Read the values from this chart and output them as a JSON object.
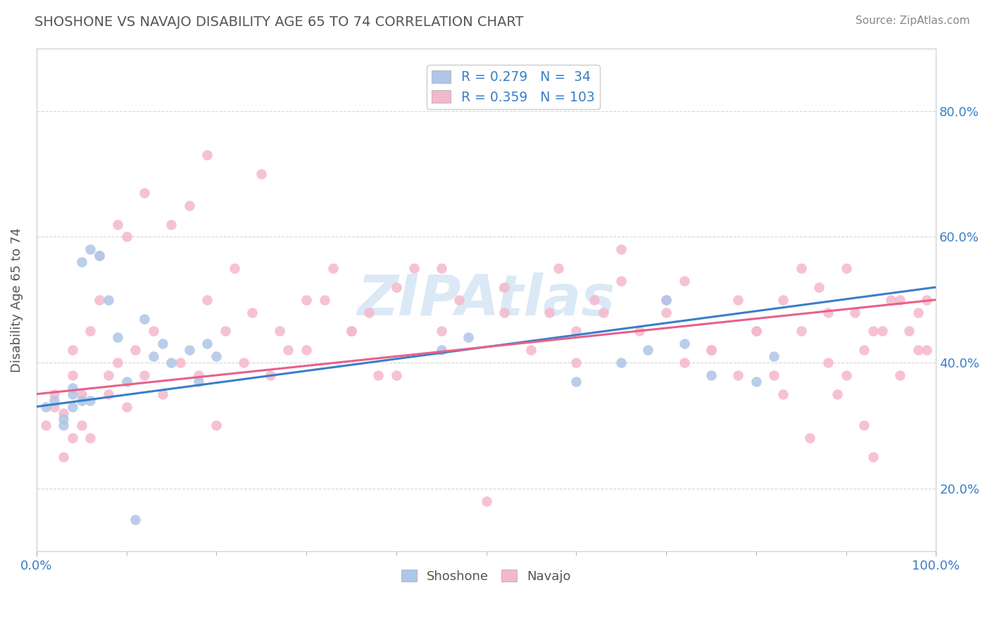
{
  "title": "SHOSHONE VS NAVAJO DISABILITY AGE 65 TO 74 CORRELATION CHART",
  "source_text": "Source: ZipAtlas.com",
  "ylabel": "Disability Age 65 to 74",
  "xlim": [
    0.0,
    1.0
  ],
  "ylim": [
    0.1,
    0.9
  ],
  "ytick_positions": [
    0.2,
    0.4,
    0.6,
    0.8
  ],
  "ytick_labels": [
    "20.0%",
    "40.0%",
    "60.0%",
    "80.0%"
  ],
  "xtick_major_positions": [
    0.0,
    1.0
  ],
  "xtick_major_labels": [
    "0.0%",
    "100.0%"
  ],
  "xtick_minor_positions": [
    0.0,
    0.1,
    0.2,
    0.3,
    0.4,
    0.5,
    0.6,
    0.7,
    0.8,
    0.9,
    1.0
  ],
  "shoshone_color": "#aec6e8",
  "navajo_color": "#f5b8cb",
  "shoshone_line_color": "#3a7ec6",
  "navajo_line_color": "#e8608a",
  "shoshone_R": 0.279,
  "shoshone_N": 34,
  "navajo_R": 0.359,
  "navajo_N": 103,
  "legend_label_shoshone": "Shoshone",
  "legend_label_navajo": "Navajo",
  "watermark": "ZIPAtlas",
  "background_color": "#ffffff",
  "grid_color": "#cccccc",
  "title_color": "#555555",
  "axis_label_color": "#3a7ec6",
  "ylabel_color": "#555555",
  "source_color": "#888888",
  "shoshone_points_x": [
    0.01,
    0.02,
    0.03,
    0.03,
    0.04,
    0.04,
    0.04,
    0.05,
    0.05,
    0.06,
    0.06,
    0.07,
    0.08,
    0.09,
    0.1,
    0.11,
    0.12,
    0.13,
    0.14,
    0.15,
    0.17,
    0.18,
    0.19,
    0.2,
    0.45,
    0.48,
    0.6,
    0.65,
    0.68,
    0.7,
    0.72,
    0.75,
    0.8,
    0.82
  ],
  "shoshone_points_y": [
    0.33,
    0.34,
    0.3,
    0.31,
    0.33,
    0.35,
    0.36,
    0.34,
    0.56,
    0.34,
    0.58,
    0.57,
    0.5,
    0.44,
    0.37,
    0.15,
    0.47,
    0.41,
    0.43,
    0.4,
    0.42,
    0.37,
    0.43,
    0.41,
    0.42,
    0.44,
    0.37,
    0.4,
    0.42,
    0.5,
    0.43,
    0.38,
    0.37,
    0.41
  ],
  "navajo_points_x": [
    0.01,
    0.02,
    0.02,
    0.03,
    0.03,
    0.04,
    0.04,
    0.04,
    0.05,
    0.05,
    0.06,
    0.06,
    0.07,
    0.07,
    0.08,
    0.08,
    0.09,
    0.09,
    0.1,
    0.1,
    0.11,
    0.12,
    0.12,
    0.13,
    0.14,
    0.15,
    0.16,
    0.17,
    0.18,
    0.19,
    0.19,
    0.2,
    0.21,
    0.22,
    0.23,
    0.24,
    0.25,
    0.26,
    0.27,
    0.28,
    0.3,
    0.32,
    0.33,
    0.35,
    0.37,
    0.38,
    0.4,
    0.42,
    0.45,
    0.47,
    0.5,
    0.52,
    0.55,
    0.57,
    0.6,
    0.62,
    0.65,
    0.67,
    0.7,
    0.72,
    0.75,
    0.78,
    0.8,
    0.82,
    0.83,
    0.85,
    0.87,
    0.88,
    0.9,
    0.91,
    0.92,
    0.93,
    0.95,
    0.96,
    0.97,
    0.98,
    0.99,
    0.99,
    0.6,
    0.63,
    0.7,
    0.75,
    0.8,
    0.85,
    0.88,
    0.9,
    0.92,
    0.94,
    0.96,
    0.98,
    0.3,
    0.35,
    0.4,
    0.45,
    0.52,
    0.58,
    0.65,
    0.72,
    0.78,
    0.83,
    0.86,
    0.89,
    0.93
  ],
  "navajo_points_y": [
    0.3,
    0.33,
    0.35,
    0.32,
    0.25,
    0.28,
    0.38,
    0.42,
    0.3,
    0.35,
    0.28,
    0.45,
    0.5,
    0.57,
    0.35,
    0.38,
    0.4,
    0.62,
    0.33,
    0.6,
    0.42,
    0.38,
    0.67,
    0.45,
    0.35,
    0.62,
    0.4,
    0.65,
    0.38,
    0.5,
    0.73,
    0.3,
    0.45,
    0.55,
    0.4,
    0.48,
    0.7,
    0.38,
    0.45,
    0.42,
    0.42,
    0.5,
    0.55,
    0.45,
    0.48,
    0.38,
    0.38,
    0.55,
    0.45,
    0.5,
    0.18,
    0.52,
    0.42,
    0.48,
    0.4,
    0.5,
    0.53,
    0.45,
    0.48,
    0.53,
    0.42,
    0.5,
    0.45,
    0.38,
    0.5,
    0.45,
    0.52,
    0.4,
    0.55,
    0.48,
    0.42,
    0.45,
    0.5,
    0.38,
    0.45,
    0.48,
    0.42,
    0.5,
    0.45,
    0.48,
    0.5,
    0.42,
    0.45,
    0.55,
    0.48,
    0.38,
    0.3,
    0.45,
    0.5,
    0.42,
    0.5,
    0.45,
    0.52,
    0.55,
    0.48,
    0.55,
    0.58,
    0.4,
    0.38,
    0.35,
    0.28,
    0.35,
    0.25
  ]
}
